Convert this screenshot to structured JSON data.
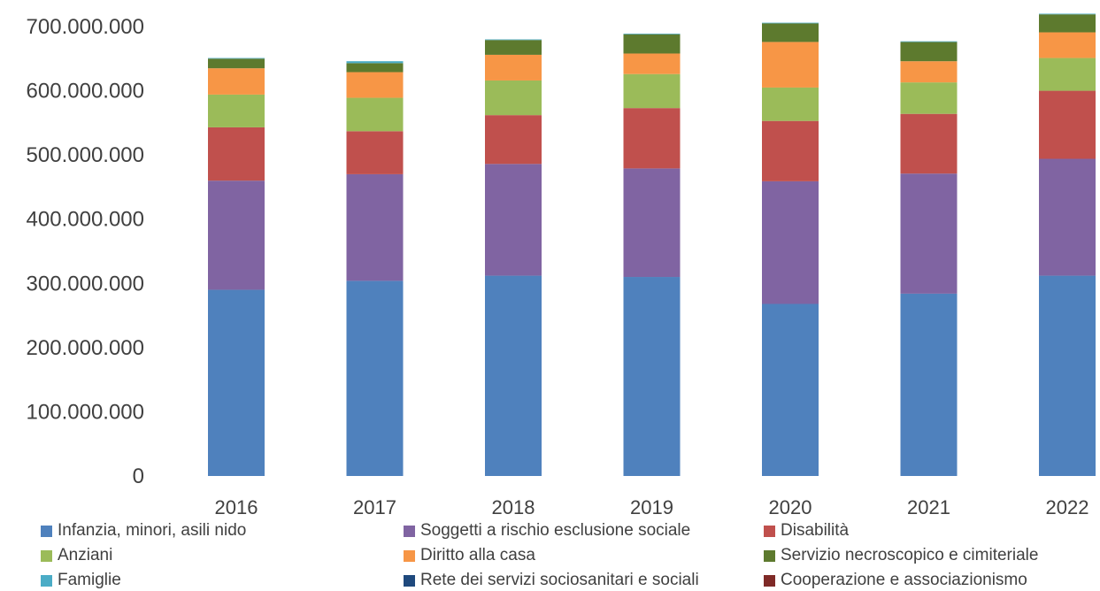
{
  "chart_data": {
    "type": "bar",
    "stacked": true,
    "categories": [
      "2016",
      "2017",
      "2018",
      "2019",
      "2020",
      "2021",
      "2022"
    ],
    "ylim": [
      0,
      700000000
    ],
    "yticks": [
      {
        "value": 0,
        "label": "0"
      },
      {
        "value": 100000000,
        "label": "100.000.000"
      },
      {
        "value": 200000000,
        "label": "200.000.000"
      },
      {
        "value": 300000000,
        "label": "300.000.000"
      },
      {
        "value": 400000000,
        "label": "400.000.000"
      },
      {
        "value": 500000000,
        "label": "500.000.000"
      },
      {
        "value": 600000000,
        "label": "600.000.000"
      },
      {
        "value": 700000000,
        "label": "700.000.000"
      }
    ],
    "grid": false,
    "legend_position": "bottom",
    "series": [
      {
        "name": "Infanzia, minori, asili nido",
        "color": "#4f81bd",
        "values": [
          290000000,
          304000000,
          312000000,
          310000000,
          268000000,
          284000000,
          312000000
        ]
      },
      {
        "name": "Soggetti a rischio esclusione sociale",
        "color": "#8064a2",
        "values": [
          170000000,
          166000000,
          174000000,
          169000000,
          191000000,
          187000000,
          182000000
        ]
      },
      {
        "name": "Disabilità",
        "color": "#c0504d",
        "values": [
          83000000,
          67000000,
          76000000,
          94000000,
          94000000,
          93000000,
          106000000
        ]
      },
      {
        "name": "Anziani",
        "color": "#9bbb59",
        "values": [
          51000000,
          52000000,
          54000000,
          53000000,
          52000000,
          49000000,
          51000000
        ]
      },
      {
        "name": "Diritto alla casa",
        "color": "#f79646",
        "values": [
          41000000,
          40000000,
          40000000,
          32000000,
          71000000,
          33000000,
          40000000
        ]
      },
      {
        "name": "Servizio necroscopico e cimiteriale",
        "color": "#5d7a2e",
        "values": [
          15000000,
          14000000,
          23000000,
          30000000,
          29000000,
          30000000,
          28000000
        ]
      },
      {
        "name": "Famiglie",
        "color": "#4bacc6",
        "values": [
          1000000,
          3000000,
          1000000,
          1000000,
          1000000,
          1000000,
          1000000
        ]
      },
      {
        "name": "Rete dei servizi sociosanitari e sociali",
        "color": "#1f497d",
        "values": [
          0,
          0,
          0,
          0,
          0,
          0,
          0
        ]
      },
      {
        "name": "Cooperazione e associazionismo",
        "color": "#7f2a27",
        "values": [
          0,
          0,
          0,
          0,
          0,
          0,
          0
        ]
      }
    ]
  }
}
